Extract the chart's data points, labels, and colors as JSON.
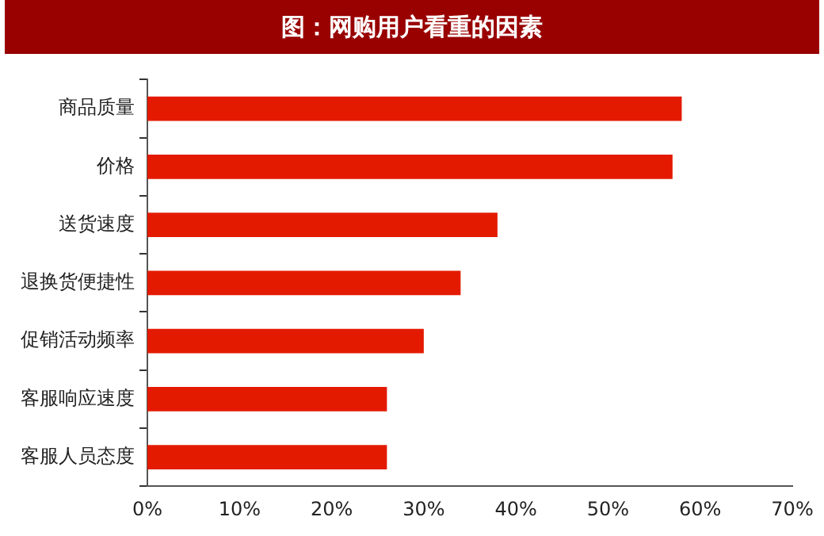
{
  "chart_data": {
    "type": "bar",
    "orientation": "horizontal",
    "title": "图：网购用户看重的因素",
    "categories": [
      "商品质量",
      "价格",
      "送货速度",
      "退换货便捷性",
      "促销活动频率",
      "客服响应速度",
      "客服人员态度"
    ],
    "values": [
      58,
      57,
      38,
      34,
      30,
      26,
      26
    ],
    "color": "#e31a00",
    "xlim": [
      0,
      70
    ],
    "xticks": [
      {
        "value": 0,
        "label": "0%"
      },
      {
        "value": 10,
        "label": "10%"
      },
      {
        "value": 20,
        "label": "20%"
      },
      {
        "value": 30,
        "label": "30%"
      },
      {
        "value": 40,
        "label": "40%"
      },
      {
        "value": 50,
        "label": "50%"
      },
      {
        "value": 60,
        "label": "60%"
      },
      {
        "value": 70,
        "label": "70%"
      }
    ],
    "grid": false,
    "legend": false
  }
}
